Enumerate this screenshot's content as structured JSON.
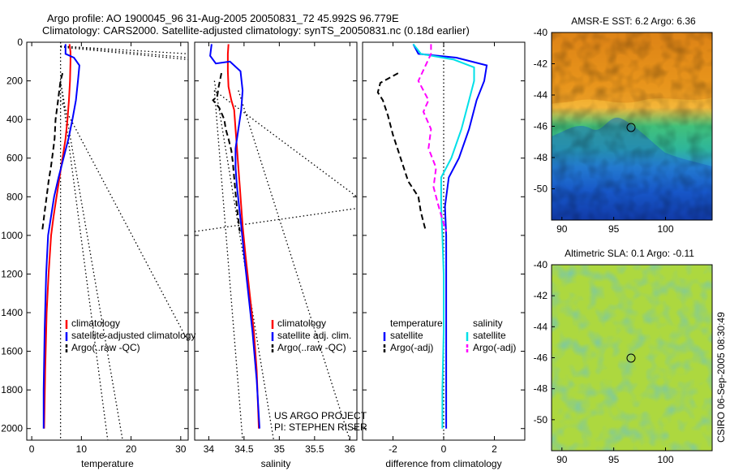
{
  "header": {
    "line1": "Argo profile: AO 1900045_96 31-Aug-2005 20050831_72 45.992S 96.779E",
    "line2": "Climatology: CARS2000. Satellite-adjusted climatology: synTS_20050831.nc (0.18d earlier)"
  },
  "colors": {
    "climatology": "#ff0000",
    "satellite": "#0000ff",
    "argo": "#000000",
    "satellite_salinity_diff": "#00e0e8",
    "argo_salinity_diff": "#ff00ff"
  },
  "side_text": "CSIRO 06-Sep-2005 08:30:49",
  "credits": [
    "US ARGO PROJECT",
    "PI: STEPHEN RISER"
  ],
  "chart_data": [
    {
      "id": "temperature",
      "type": "line",
      "xlabel": "temperature",
      "ylabel": "",
      "xlim": [
        -1,
        31.5
      ],
      "ylim": [
        2060,
        0
      ],
      "xticks": [
        0,
        10,
        20,
        30
      ],
      "yticks": [
        0,
        200,
        400,
        600,
        800,
        1000,
        1200,
        1400,
        1600,
        1800,
        2000
      ],
      "legend": [
        "climatology",
        "satellite-adjusted climatology",
        "Argo(..raw -QC)"
      ],
      "legend_placement": "lower-right",
      "series": [
        {
          "name": "climatology",
          "color": "#ff0000",
          "style": "solid",
          "x": [
            7.6,
            7.8,
            7.8,
            7.7,
            7.5,
            7.2,
            6.8,
            6.2,
            5.6,
            5.0,
            4.4,
            3.9,
            3.4,
            3.0,
            2.7,
            2.5
          ],
          "y": [
            10,
            50,
            100,
            200,
            300,
            400,
            500,
            600,
            700,
            800,
            900,
            1000,
            1200,
            1400,
            1700,
            2000
          ]
        },
        {
          "name": "satellite-adjusted climatology",
          "color": "#0000ff",
          "style": "solid",
          "x": [
            6.8,
            6.8,
            8.5,
            9.6,
            9.3,
            8.9,
            8.2,
            7.4,
            6.4,
            5.4,
            4.5,
            3.9,
            3.3,
            2.9,
            2.6,
            2.4,
            2.4
          ],
          "y": [
            10,
            60,
            80,
            120,
            200,
            300,
            400,
            500,
            600,
            700,
            800,
            900,
            1000,
            1200,
            1500,
            1800,
            2000
          ]
        },
        {
          "name": "Argo(..raw -QC)",
          "color": "#000000",
          "style": "dashed",
          "x": [
            6.2,
            5.8,
            5.5,
            5.2,
            4.8,
            4.6,
            4.3,
            3.9,
            3.4,
            3.0,
            2.6,
            2.3,
            2.1
          ],
          "y": [
            160,
            200,
            260,
            320,
            400,
            500,
            560,
            640,
            720,
            800,
            880,
            940,
            980
          ]
        }
      ],
      "dotted_lines": [
        {
          "x": [
            5.8,
            31.5
          ],
          "y": [
            20,
            60
          ]
        },
        {
          "x": [
            5.8,
            31.5
          ],
          "y": [
            20,
            80
          ]
        },
        {
          "x": [
            5.8,
            31.5
          ],
          "y": [
            25,
            90
          ]
        },
        {
          "x": [
            5.8,
            5.8
          ],
          "y": [
            0,
            2060
          ]
        },
        {
          "x": [
            5.8,
            15.3
          ],
          "y": [
            200,
            2060
          ]
        },
        {
          "x": [
            5.8,
            18.3
          ],
          "y": [
            200,
            2060
          ]
        },
        {
          "x": [
            5.8,
            31.5
          ],
          "y": [
            300,
            1550
          ]
        }
      ]
    },
    {
      "id": "salinity",
      "type": "line",
      "xlabel": "salinity",
      "ylabel": "",
      "xlim": [
        33.8,
        36.1
      ],
      "ylim": [
        2060,
        0
      ],
      "xticks": [
        34,
        34.5,
        35,
        35.5,
        36
      ],
      "legend": [
        "climatology",
        "satellite adj. clim.",
        "Argo(..raw -QC)"
      ],
      "legend_placement": "lower-right",
      "series": [
        {
          "name": "climatology",
          "color": "#ff0000",
          "style": "solid",
          "x": [
            34.28,
            34.27,
            34.27,
            34.28,
            34.32,
            34.36,
            34.38,
            34.4,
            34.42,
            34.44,
            34.46,
            34.48,
            34.52,
            34.58,
            34.64,
            34.68,
            34.71
          ],
          "y": [
            10,
            60,
            150,
            230,
            300,
            350,
            450,
            550,
            650,
            750,
            850,
            950,
            1100,
            1300,
            1500,
            1700,
            2000
          ]
        },
        {
          "name": "satellite adj. clim.",
          "color": "#0000ff",
          "style": "solid",
          "x": [
            34.04,
            34.02,
            34.1,
            34.3,
            34.45,
            34.48,
            34.46,
            34.42,
            34.38,
            34.38,
            34.4,
            34.43,
            34.46,
            34.5,
            34.56,
            34.62,
            34.68,
            34.72
          ],
          "y": [
            10,
            70,
            110,
            100,
            150,
            250,
            350,
            450,
            550,
            650,
            750,
            850,
            950,
            1100,
            1300,
            1500,
            1750,
            2000
          ]
        },
        {
          "name": "Argo(..raw -QC)",
          "color": "#000000",
          "style": "dashed",
          "x": [
            34.18,
            34.14,
            34.12,
            34.06,
            34.15,
            34.22,
            34.24,
            34.28,
            34.32,
            34.34,
            34.36,
            34.38,
            34.4,
            34.42,
            34.44
          ],
          "y": [
            160,
            230,
            280,
            300,
            340,
            400,
            450,
            500,
            560,
            620,
            700,
            780,
            860,
            920,
            980
          ]
        }
      ],
      "dotted_lines": [
        {
          "x": [
            34.08,
            34.92
          ],
          "y": [
            200,
            2060
          ]
        },
        {
          "x": [
            34.08,
            34.48
          ],
          "y": [
            250,
            2060
          ]
        },
        {
          "x": [
            34.08,
            36.1
          ],
          "y": [
            250,
            800
          ]
        },
        {
          "x": [
            33.8,
            36.1
          ],
          "y": [
            980,
            860
          ]
        },
        {
          "x": [
            34.42,
            36.0
          ],
          "y": [
            250,
            2060
          ]
        }
      ]
    },
    {
      "id": "difference",
      "type": "line",
      "xlabel": "difference from climatology",
      "ylabel": "",
      "xlim": [
        -3.2,
        3.2
      ],
      "ylim": [
        2060,
        0
      ],
      "xticks": [
        -2,
        0,
        2
      ],
      "legend": [
        "temperature",
        "satellite",
        "Argo(-adj)",
        "salinity",
        "satellite",
        "Argo(-adj)"
      ],
      "legend_placement": "lower-middle",
      "series": [
        {
          "name": "satellite",
          "quantity": "temperature",
          "color": "#0000ff",
          "style": "solid",
          "x": [
            -1.2,
            -1.0,
            0.5,
            1.7,
            1.6,
            1.3,
            1.0,
            0.6,
            0.2,
            0.05,
            0.1,
            0.1,
            0.1,
            0.1
          ],
          "y": [
            10,
            60,
            80,
            120,
            200,
            300,
            450,
            600,
            700,
            850,
            1000,
            1200,
            1600,
            2000
          ]
        },
        {
          "name": "satellite",
          "quantity": "salinity",
          "color": "#00e0e8",
          "style": "solid",
          "x": [
            -1.2,
            -0.9,
            0.4,
            1.2,
            1.2,
            1.0,
            0.7,
            0.3,
            -0.1,
            -0.1,
            -0.05,
            0.0,
            0.0,
            -0.05,
            -0.05
          ],
          "y": [
            10,
            60,
            90,
            130,
            200,
            300,
            450,
            600,
            700,
            850,
            1000,
            1200,
            1500,
            1800,
            2000
          ]
        },
        {
          "name": "Argo(-adj)",
          "quantity": "temperature",
          "color": "#000000",
          "style": "dashed",
          "x": [
            -1.8,
            -2.5,
            -2.6,
            -2.4,
            -2.2,
            -2.0,
            -1.8,
            -1.6,
            -1.4,
            -1.0,
            -0.9,
            -0.7
          ],
          "y": [
            160,
            210,
            260,
            300,
            380,
            480,
            560,
            640,
            720,
            800,
            880,
            980
          ]
        },
        {
          "name": "Argo(-adj)",
          "quantity": "salinity",
          "color": "#ff00ff",
          "style": "dashed",
          "x": [
            -0.5,
            -0.5,
            -1.0,
            -0.6,
            -0.8,
            -0.5,
            -0.6,
            -0.3,
            -0.4,
            -0.2,
            0.0,
            0.1
          ],
          "y": [
            10,
            60,
            200,
            300,
            360,
            450,
            550,
            650,
            750,
            850,
            940,
            980
          ]
        }
      ],
      "dotted_lines": [
        {
          "x": [
            0,
            0
          ],
          "y": [
            0,
            2060
          ]
        }
      ]
    },
    {
      "id": "sst_map",
      "type": "heatmap",
      "title": "AMSR-E SST: 6.2 Argo: 6.36",
      "xlim": [
        89,
        104.5
      ],
      "ylim": [
        -52,
        -40
      ],
      "xticks": [
        90,
        95,
        100
      ],
      "yticks": [
        -40,
        -42,
        -44,
        -46,
        -48,
        -50
      ],
      "marker": {
        "x": 96.78,
        "y": -45.99
      },
      "colormap": "jet-like, orange north to dark blue south"
    },
    {
      "id": "sla_map",
      "type": "heatmap",
      "title": "Altimetric SLA: 0.1 Argo: -0.11",
      "xlim": [
        89,
        104.5
      ],
      "ylim": [
        -52,
        -40
      ],
      "xticks": [
        90,
        95,
        100
      ],
      "yticks": [
        -40,
        -42,
        -44,
        -46,
        -48,
        -50
      ],
      "marker": {
        "x": 96.78,
        "y": -45.99
      },
      "colormap": "mottled yellow / green / teal"
    }
  ]
}
